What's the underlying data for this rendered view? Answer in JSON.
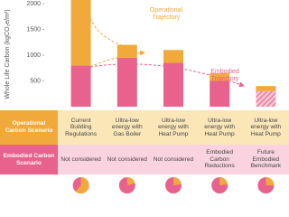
{
  "chart_data": {
    "type": "bar",
    "stacked": true,
    "ylabel": "Whole Life Carbon (kgCO₂e/m²)",
    "ylim": [
      0,
      2000
    ],
    "yticks": [
      500,
      1000,
      1500,
      2000
    ],
    "grid": false,
    "series": [
      {
        "color": "#e8628d",
        "values": [
          800,
          950,
          850,
          500,
          300
        ],
        "hatched": [
          false,
          false,
          false,
          false,
          true
        ]
      },
      {
        "color": "#f2a93b",
        "values": [
          1300,
          250,
          250,
          150,
          100
        ]
      }
    ],
    "annotations": [
      {
        "text": "Operational Trajectory",
        "color": "#f2a93b"
      },
      {
        "text": "Embodied Trajectory",
        "color": "#e8628d"
      }
    ]
  },
  "table": {
    "rows": [
      {
        "header": "Operational Carbon Scenario",
        "cells": [
          "Current Building Regulations",
          "Ultra-low energy with Gas Boiler",
          "Ultra-low energy with Heat Pump",
          "Ultra-low energy with Heat Pump",
          "Ultra-low energy with Heat Pump"
        ]
      },
      {
        "header": "Embodied Carbon Scenario",
        "cells": [
          "Not considered",
          "Not considered",
          "Not considered",
          "Embodied Carbon Reductions",
          "Future Embodied Benchmark"
        ]
      }
    ]
  }
}
